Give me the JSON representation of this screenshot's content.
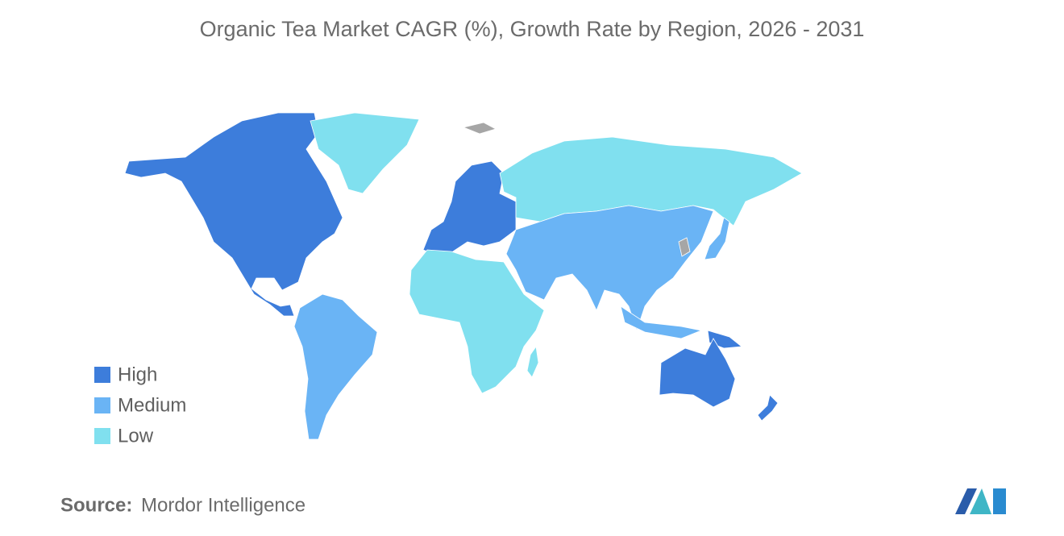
{
  "title": "Organic Tea Market CAGR (%), Growth Rate by Region, 2026 - 2031",
  "legend": [
    {
      "label": "High",
      "color": "#3d7ddb"
    },
    {
      "label": "Medium",
      "color": "#6ab4f5"
    },
    {
      "label": "Low",
      "color": "#80e0ef"
    }
  ],
  "no_data_color": "#a6a6a6",
  "source": {
    "label": "Source:",
    "text": "Mordor Intelligence"
  }
}
